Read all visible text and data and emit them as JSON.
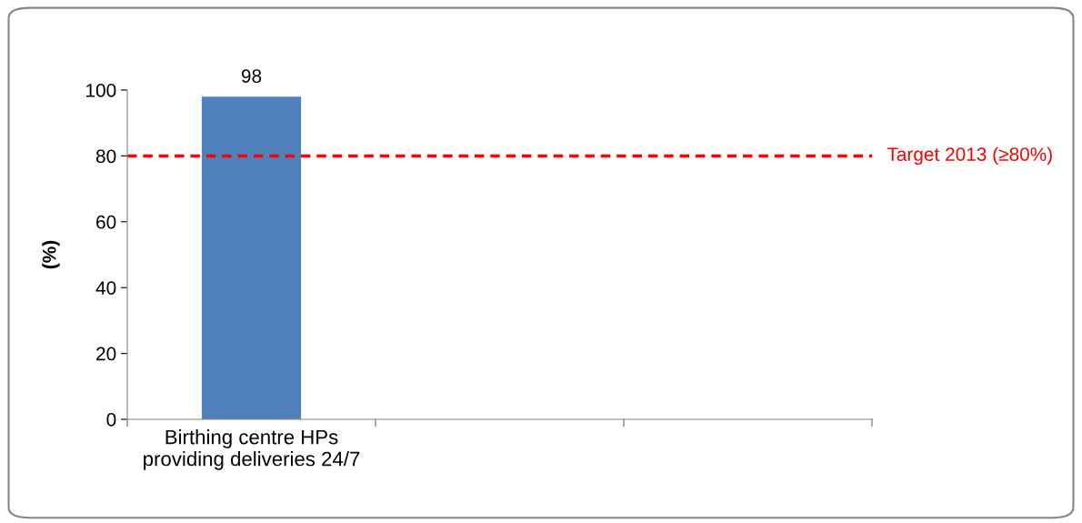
{
  "chart_data": {
    "type": "bar",
    "ylabel": "(%)",
    "categories": [
      "Birthing centre HPs\nproviding deliveries 24/7",
      null,
      null
    ],
    "values": [
      98,
      null,
      null
    ],
    "color": "#4f81bd",
    "ylim": [
      0,
      100
    ],
    "yticks": [
      0,
      20,
      40,
      60,
      80,
      100
    ],
    "grid": false,
    "data_labels": true,
    "ref_lines": [
      {
        "axis": "y",
        "value": 80,
        "label": "Target 2013 (≥80%)",
        "color": "#ff0000",
        "line_style": "dashed"
      }
    ]
  }
}
